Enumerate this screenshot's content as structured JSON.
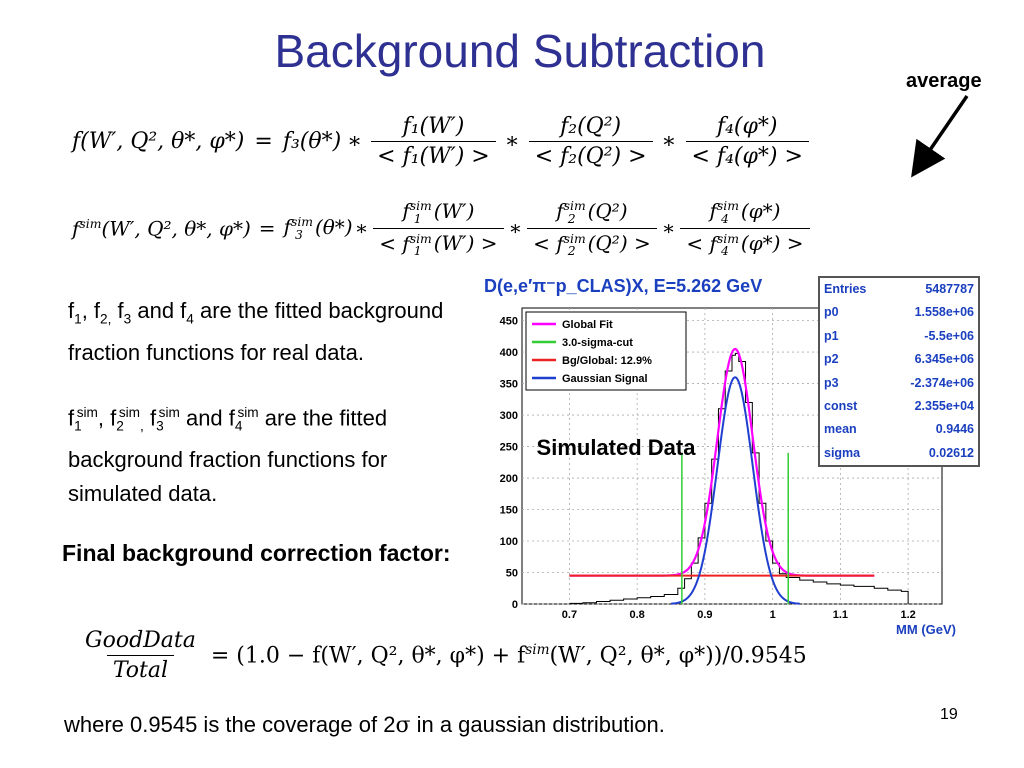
{
  "slide": {
    "title": "Background Subtraction",
    "average_label": "average",
    "page_number": "19",
    "paragraph1": {
      "f": "f",
      "s1": "1",
      "c1": ", f",
      "s2": "2,",
      "sp1": " f",
      "s3": "3",
      "and": " and f",
      "s4": "4",
      "rest": " are the fitted background fraction functions for real data."
    },
    "paragraph2": {
      "f": "f",
      "s1": "1",
      "sup1": "sim",
      "c1": ", f",
      "s2": "2",
      "sup2": "sim",
      "comma2": ",",
      "sp": " f",
      "s3": "3",
      "sup3": "sim",
      "and": " and f",
      "s4": "4",
      "sup4": "sim",
      "rest": " are the fitted background fraction functions for simulated data."
    },
    "final_label": "Final background correction factor:",
    "simulated_label": "Simulated Data",
    "footer_pre": "where 0.9545 is the coverage of 2",
    "footer_sigma": "σ",
    "footer_post": " in a gaussian distribution."
  },
  "equations": {
    "eq1": {
      "lhs": "f(W′, Q², θ*, φ*)",
      "eq": "=",
      "f3": "f₃(θ*)",
      "mult": "∗",
      "n1": "f₁(W′)",
      "d1": "< f₁(W′) >",
      "n2": "f₂(Q²)",
      "d2": "< f₂(Q²) >",
      "n3": "f₄(φ*)",
      "d3": "< f₄(φ*) >"
    },
    "eq2": {
      "lhs_f": "f",
      "lhs_sup": "sim",
      "lhs_args": "(W′, Q², θ*, φ*)",
      "eq": "=",
      "f3": "f",
      "f3_sub": "3",
      "f3_sup": "sim",
      "f3_args": "(θ*)",
      "mult": "∗",
      "n1f": "f",
      "n1sub": "1",
      "n1sup": "sim",
      "n1a": "(W′)",
      "d1l": "< f",
      "d1sub": "1",
      "d1sup": "sim",
      "d1a": "(W′) >",
      "n2f": "f",
      "n2sub": "2",
      "n2sup": "sim",
      "n2a": "(Q²)",
      "d2l": "< f",
      "d2sub": "2",
      "d2sup": "sim",
      "d2a": "(Q²) >",
      "n3f": "f",
      "n3sub": "4",
      "n3sup": "sim",
      "n3a": "(φ*)",
      "d3l": "< f",
      "d3sub": "4",
      "d3sup": "sim",
      "d3a": "(φ*) >"
    },
    "eq3": {
      "num": "GoodData",
      "den": "Total",
      "rhs_a": "= (1.0 − f(W′, Q², θ*, φ*) + f",
      "rhs_sup": "sim",
      "rhs_b": "(W′, Q², θ*, φ*))/0.9545"
    }
  },
  "chart_data": {
    "type": "histogram",
    "title": "D(e,e′π⁻p_CLAS)X, E=5.262 GeV",
    "xlabel": "MM (GeV)",
    "ylabel": "",
    "xlim": [
      0.63,
      1.25
    ],
    "ylim": [
      0,
      470
    ],
    "x_ticks": [
      "0.7",
      "0.8",
      "0.9",
      "1",
      "1.1",
      "1.2"
    ],
    "y_ticks": [
      "0",
      "50",
      "100",
      "150",
      "200",
      "250",
      "300",
      "350",
      "400",
      "450"
    ],
    "legend": [
      {
        "name": "Global Fit",
        "color": "#ff00ff"
      },
      {
        "name": "3.0-sigma-cut",
        "color": "#33cc33"
      },
      {
        "name": "Bg/Global: 12.9%",
        "color": "#ee2222"
      },
      {
        "name": "Gaussian Signal",
        "color": "#1f3fcf"
      }
    ],
    "cut_lines_x": [
      0.866,
      1.023
    ],
    "gaussian": {
      "amplitude": 360,
      "mean": 0.9446,
      "sigma": 0.02612
    },
    "background_poly": {
      "p0": 1558000,
      "p1": -5500000,
      "p2": 6345000,
      "p3": -2374000
    },
    "histogram_x": [
      0.7,
      0.72,
      0.74,
      0.76,
      0.78,
      0.8,
      0.82,
      0.84,
      0.86,
      0.87,
      0.88,
      0.89,
      0.9,
      0.91,
      0.92,
      0.93,
      0.94,
      0.945,
      0.95,
      0.96,
      0.97,
      0.98,
      0.99,
      1.0,
      1.01,
      1.02,
      1.04,
      1.06,
      1.08,
      1.1,
      1.12,
      1.15,
      1.17,
      1.19,
      1.2
    ],
    "histogram_y": [
      1,
      2,
      4,
      6,
      8,
      10,
      12,
      15,
      25,
      40,
      65,
      105,
      160,
      230,
      310,
      370,
      395,
      398,
      385,
      320,
      240,
      160,
      100,
      65,
      48,
      42,
      38,
      35,
      32,
      30,
      28,
      25,
      22,
      20,
      0
    ],
    "stats": [
      {
        "label": "Entries",
        "value": "5487787"
      },
      {
        "label": "p0",
        "value": "1.558e+06"
      },
      {
        "label": "p1",
        "value": "-5.5e+06"
      },
      {
        "label": "p2",
        "value": "6.345e+06"
      },
      {
        "label": "p3",
        "value": "-2.374e+06"
      },
      {
        "label": "const",
        "value": "2.355e+04"
      },
      {
        "label": "mean",
        "value": "0.9446"
      },
      {
        "label": "sigma",
        "value": "0.02612"
      }
    ]
  }
}
